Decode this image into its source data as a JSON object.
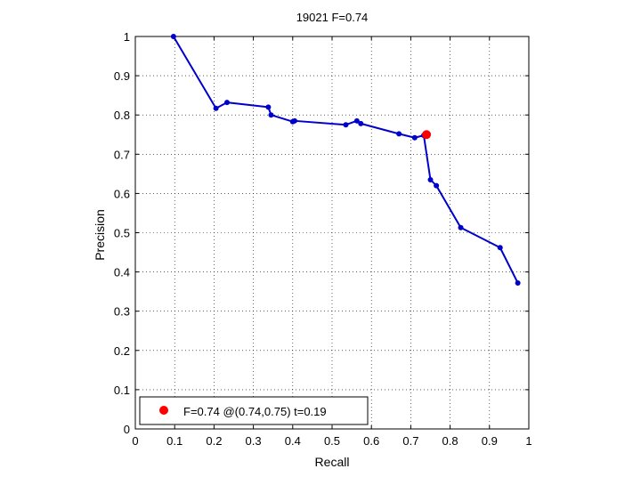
{
  "chart_data": {
    "type": "line",
    "title": "19021 F=0.74",
    "xlabel": "Recall",
    "ylabel": "Precision",
    "xlim": [
      0,
      1
    ],
    "ylim": [
      0,
      1
    ],
    "xticks": [
      0,
      0.1,
      0.2,
      0.3,
      0.4,
      0.5,
      0.6,
      0.7,
      0.8,
      0.9,
      1
    ],
    "xtick_labels": [
      "0",
      "0.1",
      "0.2",
      "0.3",
      "0.4",
      "0.5",
      "0.6",
      "0.7",
      "0.8",
      "0.9",
      "1"
    ],
    "yticks": [
      0,
      0.1,
      0.2,
      0.3,
      0.4,
      0.5,
      0.6,
      0.7,
      0.8,
      0.9,
      1
    ],
    "ytick_labels": [
      "0",
      "0.1",
      "0.2",
      "0.3",
      "0.4",
      "0.5",
      "0.6",
      "0.7",
      "0.8",
      "0.9",
      "1"
    ],
    "grid": true,
    "legend_position": "bottom-left",
    "series": [
      {
        "color": "#0000cc",
        "x": [
          0.097,
          0.205,
          0.233,
          0.338,
          0.345,
          0.4,
          0.405,
          0.535,
          0.563,
          0.573,
          0.67,
          0.71,
          0.733,
          0.75,
          0.765,
          0.827,
          0.927,
          0.972
        ],
        "y": [
          1.0,
          0.817,
          0.832,
          0.82,
          0.8,
          0.783,
          0.785,
          0.775,
          0.785,
          0.778,
          0.752,
          0.742,
          0.748,
          0.635,
          0.62,
          0.513,
          0.462,
          0.372
        ]
      }
    ],
    "highlight": {
      "x": 0.74,
      "y": 0.75,
      "color": "#ff0000",
      "legend_label": "F=0.74 @(0.74,0.75) t=0.19"
    }
  }
}
